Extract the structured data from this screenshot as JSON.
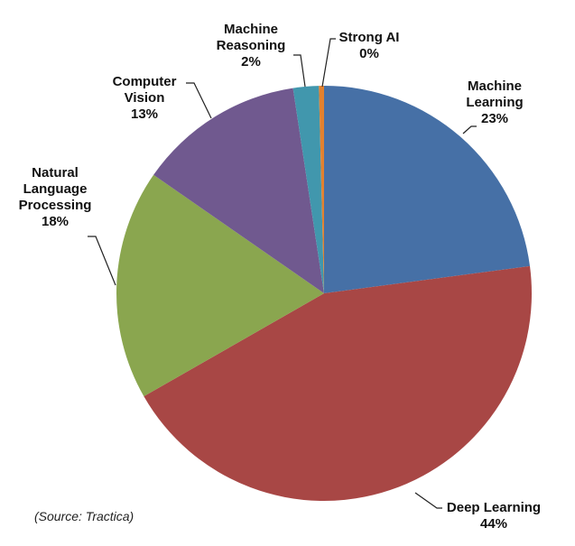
{
  "chart_data": {
    "type": "pie",
    "title": "",
    "start_angle_deg": 0,
    "direction": "clockwise",
    "slices": [
      {
        "label": "Machine Learning",
        "value": 23,
        "display": "23%",
        "color": "#4670a6"
      },
      {
        "label": "Deep Learning",
        "value": 44,
        "display": "44%",
        "color": "#a84745"
      },
      {
        "label": "Natural Language Processing",
        "value": 18,
        "display": "18%",
        "color": "#8aa64f"
      },
      {
        "label": "Computer Vision",
        "value": 13,
        "display": "13%",
        "color": "#70598f"
      },
      {
        "label": "Machine Reasoning",
        "value": 2,
        "display": "2%",
        "color": "#4197ad"
      },
      {
        "label": "Strong AI",
        "value": 0.4,
        "display": "0%",
        "color": "#e2812f"
      }
    ],
    "legend": "none (callout labels with leader lines)",
    "source": "(Source: Tractica)"
  },
  "labels": {
    "machine_learning": {
      "line1": "Machine",
      "line2": "Learning",
      "pct": "23%"
    },
    "deep_learning": {
      "line1": "Deep Learning",
      "pct": "44%"
    },
    "nlp": {
      "line1": "Natural",
      "line2": "Language",
      "line3": "Processing",
      "pct": "18%"
    },
    "computer_vision": {
      "line1": "Computer",
      "line2": "Vision",
      "pct": "13%"
    },
    "machine_reasoning": {
      "line1": "Machine",
      "line2": "Reasoning",
      "pct": "2%"
    },
    "strong_ai": {
      "line1": "Strong AI",
      "pct": "0%"
    }
  },
  "source": "(Source: Tractica)"
}
